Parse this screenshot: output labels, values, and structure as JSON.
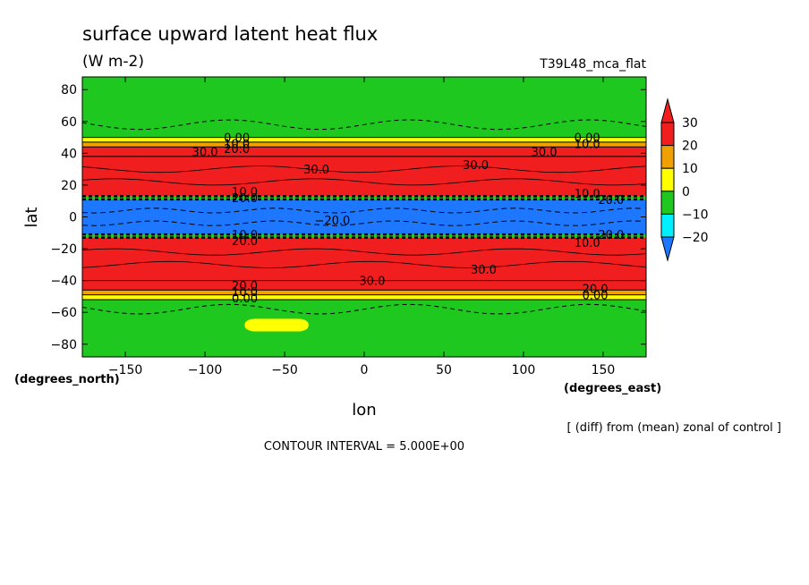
{
  "chart_data": {
    "type": "heatmap",
    "title": "surface upward latent heat flux",
    "units": "(W m-2)",
    "run_label": "T39L48_mca_flat",
    "xlabel": "lon",
    "ylabel": "lat",
    "x_unit_label": "(degrees_east)",
    "y_unit_label": "(degrees_north)",
    "xlim": [
      -177,
      177
    ],
    "ylim": [
      -88,
      88
    ],
    "xticks": [
      -150,
      -100,
      -50,
      0,
      50,
      100,
      150
    ],
    "yticks": [
      -80,
      -60,
      -40,
      -20,
      0,
      20,
      40,
      60,
      80
    ],
    "xtick_labels": [
      "−150",
      "−100",
      "−50",
      "0",
      "50",
      "100",
      "150"
    ],
    "ytick_labels": [
      "−80",
      "−60",
      "−40",
      "−20",
      "0",
      "20",
      "40",
      "60",
      "80"
    ],
    "colorbar": {
      "levels": [
        -20,
        -10,
        0,
        10,
        20,
        30
      ],
      "level_labels": [
        "−20",
        "−10",
        "0",
        "10",
        "20",
        "30"
      ],
      "colors": [
        "#1e78ff",
        "#00f0ff",
        "#1ec81e",
        "#ffff00",
        "#f0a000",
        "#f01e1e"
      ]
    },
    "bands": [
      {
        "lat_min": -88,
        "lat_max": -52,
        "value": -5
      },
      {
        "lat_min": -52,
        "lat_max": -49,
        "value": 5
      },
      {
        "lat_min": -49,
        "lat_max": -46,
        "value": 15
      },
      {
        "lat_min": -46,
        "lat_max": -40,
        "value": 25
      },
      {
        "lat_min": -40,
        "lat_max": -13,
        "value": 35
      },
      {
        "lat_min": -13,
        "lat_max": -11,
        "value": -5
      },
      {
        "lat_min": -11,
        "lat_max": 11,
        "value": -25
      },
      {
        "lat_min": 11,
        "lat_max": 13,
        "value": -5
      },
      {
        "lat_min": 13,
        "lat_max": 38,
        "value": 35
      },
      {
        "lat_min": 38,
        "lat_max": 44,
        "value": 25
      },
      {
        "lat_min": 44,
        "lat_max": 47,
        "value": 15
      },
      {
        "lat_min": 47,
        "lat_max": 50,
        "value": 5
      },
      {
        "lat_min": 50,
        "lat_max": 88,
        "value": -5
      }
    ],
    "patches": [
      {
        "lon_min": -177,
        "lon_max": -160,
        "lat_min": 34,
        "lat_max": 40,
        "value": 35
      },
      {
        "lon_min": -20,
        "lon_max": 5,
        "lat_min": 34,
        "lat_max": 38,
        "value": 25
      },
      {
        "lon_min": 40,
        "lon_max": 110,
        "lat_min": 32,
        "lat_max": 38,
        "value": 35
      },
      {
        "lon_min": 130,
        "lon_max": 177,
        "lat_min": 26,
        "lat_max": 34,
        "value": 25
      },
      {
        "lon_min": -75,
        "lon_max": -30,
        "lat_min": -43,
        "lat_max": -36,
        "value": 25
      },
      {
        "lon_min": -150,
        "lon_max": -80,
        "lat_min": -32,
        "lat_max": -26,
        "value": 25
      },
      {
        "lon_min": 40,
        "lon_max": 90,
        "lat_min": -32,
        "lat_max": -27,
        "value": 25
      },
      {
        "lon_min": -75,
        "lon_max": -35,
        "lat_min": -72,
        "lat_max": -64,
        "value": 5
      }
    ],
    "contour_labels": [
      "0.00",
      "10.0",
      "20.0",
      "30.0",
      "−20.0"
    ],
    "footer_note": "[ (diff) from (mean) zonal of control ]",
    "contour_interval": "CONTOUR INTERVAL = 5.000E+00"
  }
}
